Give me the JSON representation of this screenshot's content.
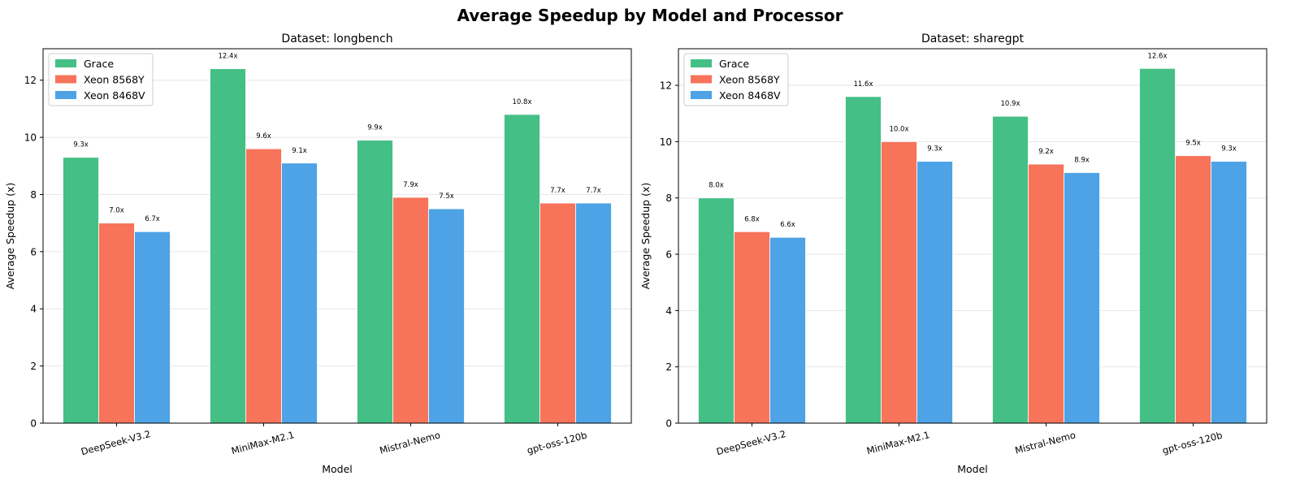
{
  "suptitle": "Average Speedup by Model and Processor",
  "chart_data": [
    {
      "type": "bar",
      "title": "Dataset: longbench",
      "xlabel": "Model",
      "ylabel": "Average Speedup (x)",
      "ylim": [
        0,
        13.1
      ],
      "yticks": [
        0,
        2,
        4,
        6,
        8,
        10,
        12
      ],
      "grid": "y",
      "legend": "top-left",
      "categories": [
        "DeepSeek-V3.2",
        "MiniMax-M2.1",
        "Mistral-Nemo",
        "gpt-oss-120b"
      ],
      "series": [
        {
          "name": "Grace",
          "color": "#44bf85",
          "values": [
            9.3,
            12.4,
            9.9,
            10.8
          ],
          "labels": [
            "9.3x",
            "12.4x",
            "9.9x",
            "10.8x"
          ]
        },
        {
          "name": "Xeon 8568Y",
          "color": "#f7735a",
          "values": [
            7.0,
            9.6,
            7.9,
            7.7
          ],
          "labels": [
            "7.0x",
            "9.6x",
            "7.9x",
            "7.7x"
          ]
        },
        {
          "name": "Xeon 8468V",
          "color": "#4da3e6",
          "values": [
            6.7,
            9.1,
            7.5,
            7.7
          ],
          "labels": [
            "6.7x",
            "9.1x",
            "7.5x",
            "7.7x"
          ]
        }
      ]
    },
    {
      "type": "bar",
      "title": "Dataset: sharegpt",
      "xlabel": "Model",
      "ylabel": "Average Speedup (x)",
      "ylim": [
        0,
        13.3
      ],
      "yticks": [
        0,
        2,
        4,
        6,
        8,
        10,
        12
      ],
      "grid": "y",
      "legend": "top-left",
      "categories": [
        "DeepSeek-V3.2",
        "MiniMax-M2.1",
        "Mistral-Nemo",
        "gpt-oss-120b"
      ],
      "series": [
        {
          "name": "Grace",
          "color": "#44bf85",
          "values": [
            8.0,
            11.6,
            10.9,
            12.6
          ],
          "labels": [
            "8.0x",
            "11.6x",
            "10.9x",
            "12.6x"
          ]
        },
        {
          "name": "Xeon 8568Y",
          "color": "#f7735a",
          "values": [
            6.8,
            10.0,
            9.2,
            9.5
          ],
          "labels": [
            "6.8x",
            "10.0x",
            "9.2x",
            "9.5x"
          ]
        },
        {
          "name": "Xeon 8468V",
          "color": "#4da3e6",
          "values": [
            6.6,
            9.3,
            8.9,
            9.3
          ],
          "labels": [
            "6.6x",
            "9.3x",
            "8.9x",
            "9.3x"
          ]
        }
      ]
    }
  ]
}
